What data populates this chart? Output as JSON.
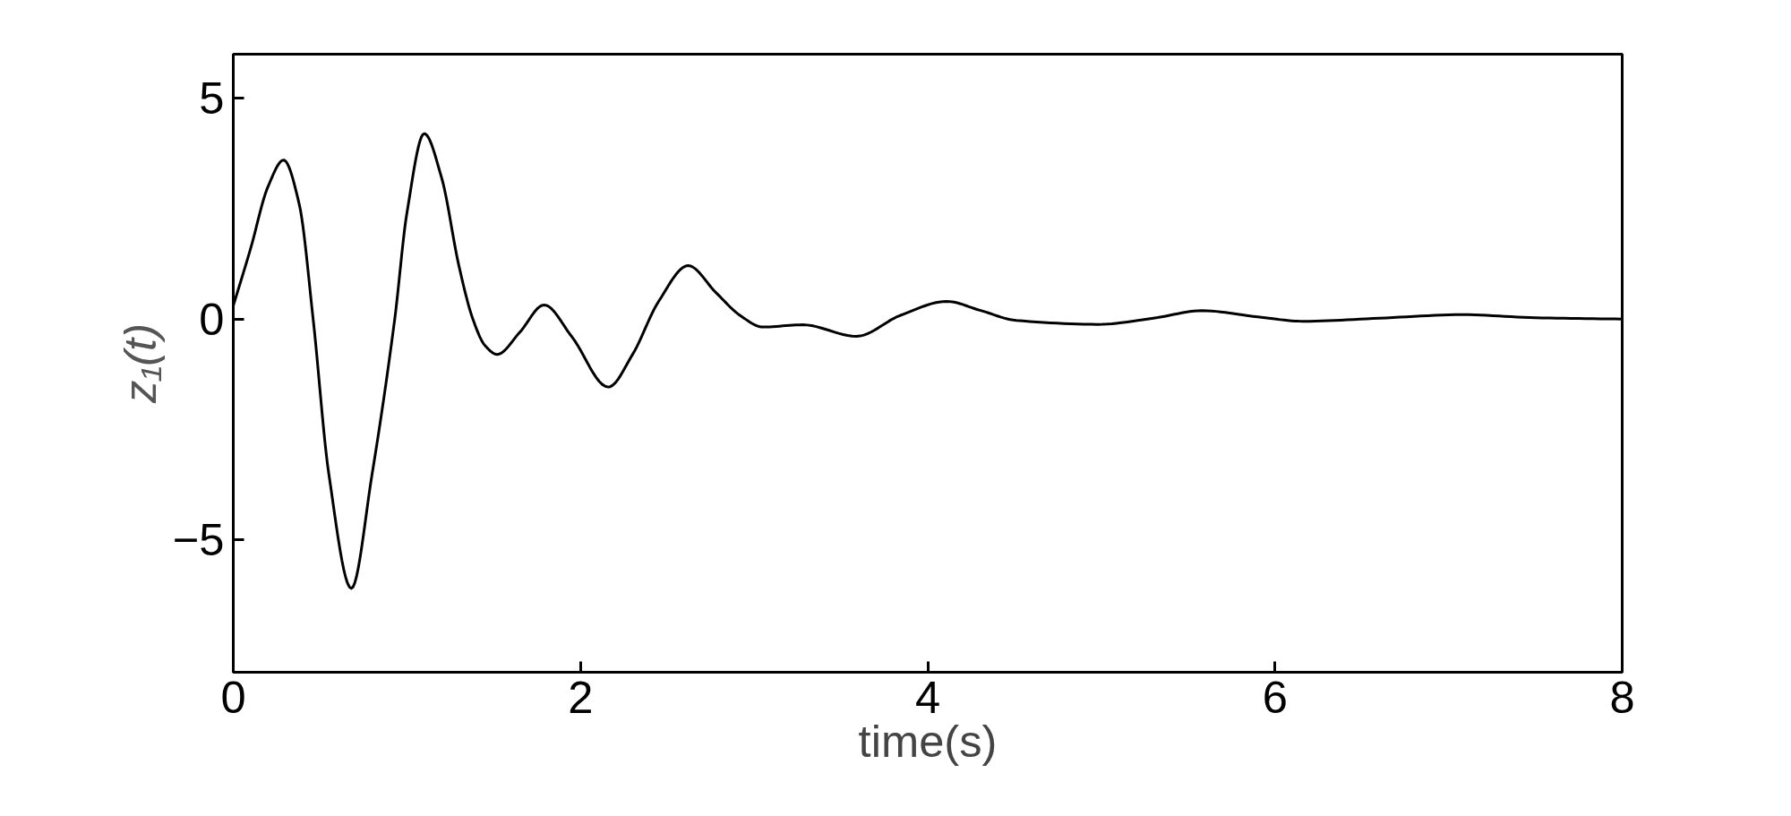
{
  "chart_data": {
    "type": "line",
    "xlabel": "time(s)",
    "ylabel": "z₁(t)",
    "xlim": [
      0,
      8
    ],
    "ylim": [
      -8,
      6
    ],
    "xticks": [
      0,
      2,
      4,
      6,
      8
    ],
    "yticks": [
      {
        "value": -5,
        "label": "−5"
      },
      0,
      5
    ],
    "grid": false,
    "marker": "none",
    "line_style": "solid",
    "series": [
      {
        "color": "#000000",
        "x": [
          0,
          0.1,
          0.2,
          0.29,
          0.38,
          0.46,
          0.55,
          0.68,
          0.8,
          0.93,
          1.0,
          1.1,
          1.2,
          1.3,
          1.38,
          1.45,
          1.52,
          1.65,
          1.79,
          1.95,
          2.16,
          2.3,
          2.45,
          2.62,
          2.78,
          2.92,
          3.05,
          3.28,
          3.59,
          3.84,
          4.11,
          4.3,
          4.51,
          4.98,
          5.3,
          5.58,
          5.9,
          6.16,
          6.6,
          7.08,
          7.5,
          8
        ],
        "values": [
          0.3,
          1.6,
          3.0,
          3.6,
          2.6,
          0,
          -3.5,
          -6.1,
          -3.5,
          0,
          2.4,
          4.2,
          3.2,
          1.2,
          0,
          -0.6,
          -0.8,
          -0.3,
          0.32,
          -0.4,
          -1.54,
          -0.8,
          0.4,
          1.21,
          0.6,
          0.08,
          -0.18,
          -0.13,
          -0.39,
          0.08,
          0.4,
          0.2,
          -0.03,
          -0.12,
          0.02,
          0.19,
          0.05,
          -0.05,
          0.02,
          0.1,
          0.03,
          0
        ]
      }
    ]
  }
}
